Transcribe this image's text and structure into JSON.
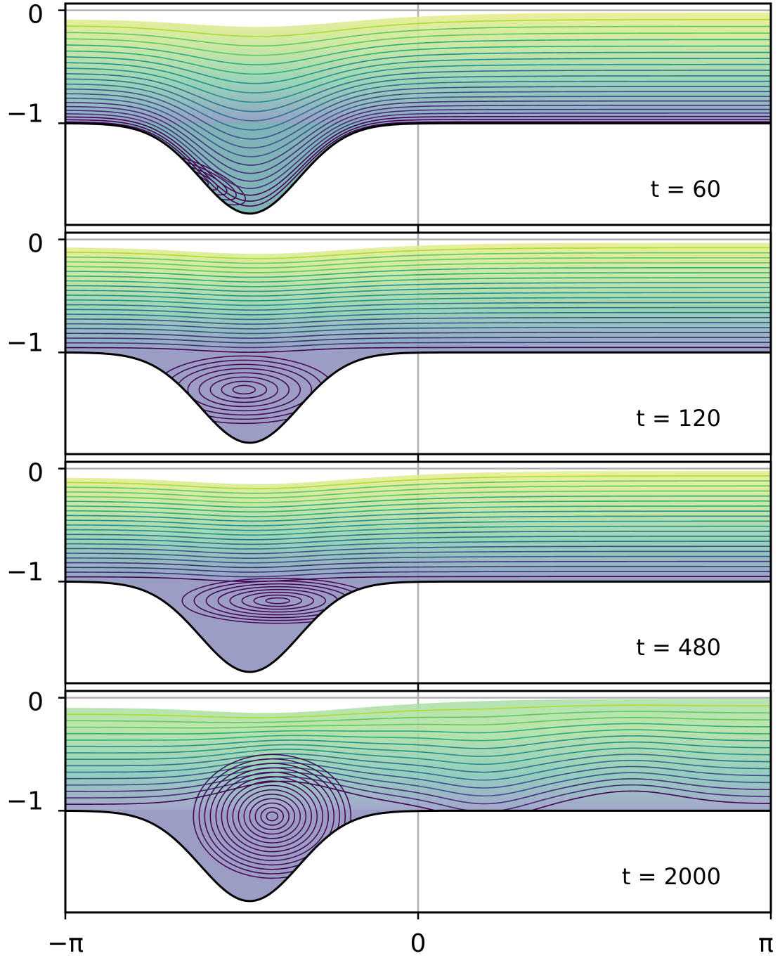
{
  "chart_data": [
    {
      "type": "contour",
      "annotation": "t = 60",
      "xlim": [
        -3.14159,
        3.14159
      ],
      "ylim": [
        -1.9,
        0.06
      ],
      "xticks": [
        {
          "value": -3.14159,
          "label": "−π"
        },
        0,
        {
          "value": 3.14159,
          "label": "π"
        }
      ],
      "yticks": [
        0,
        {
          "value": -1,
          "label": "−1"
        }
      ],
      "grid": true
    },
    {
      "type": "contour",
      "annotation": "t = 120",
      "xlim": [
        -3.14159,
        3.14159
      ],
      "ylim": [
        -1.9,
        0.06
      ],
      "xticks": [
        {
          "value": -3.14159,
          "label": "−π"
        },
        0,
        {
          "value": 3.14159,
          "label": "π"
        }
      ],
      "yticks": [
        0,
        {
          "value": -1,
          "label": "−1"
        }
      ],
      "grid": true
    },
    {
      "type": "contour",
      "annotation": "t = 480",
      "xlim": [
        -3.14159,
        3.14159
      ],
      "ylim": [
        -1.9,
        0.06
      ],
      "xticks": [
        {
          "value": -3.14159,
          "label": "−π"
        },
        0,
        {
          "value": 3.14159,
          "label": "π"
        }
      ],
      "yticks": [
        0,
        {
          "value": -1,
          "label": "−1"
        }
      ],
      "grid": true
    },
    {
      "type": "contour",
      "annotation": "t = 2000",
      "xlim": [
        -3.14159,
        3.14159
      ],
      "ylim": [
        -1.9,
        0.06
      ],
      "xticks": [
        {
          "value": -3.14159,
          "label": "−π"
        },
        0,
        {
          "value": 3.14159,
          "label": "π"
        }
      ],
      "yticks": [
        0,
        {
          "value": -1,
          "label": "−1"
        }
      ],
      "grid": true
    }
  ]
}
